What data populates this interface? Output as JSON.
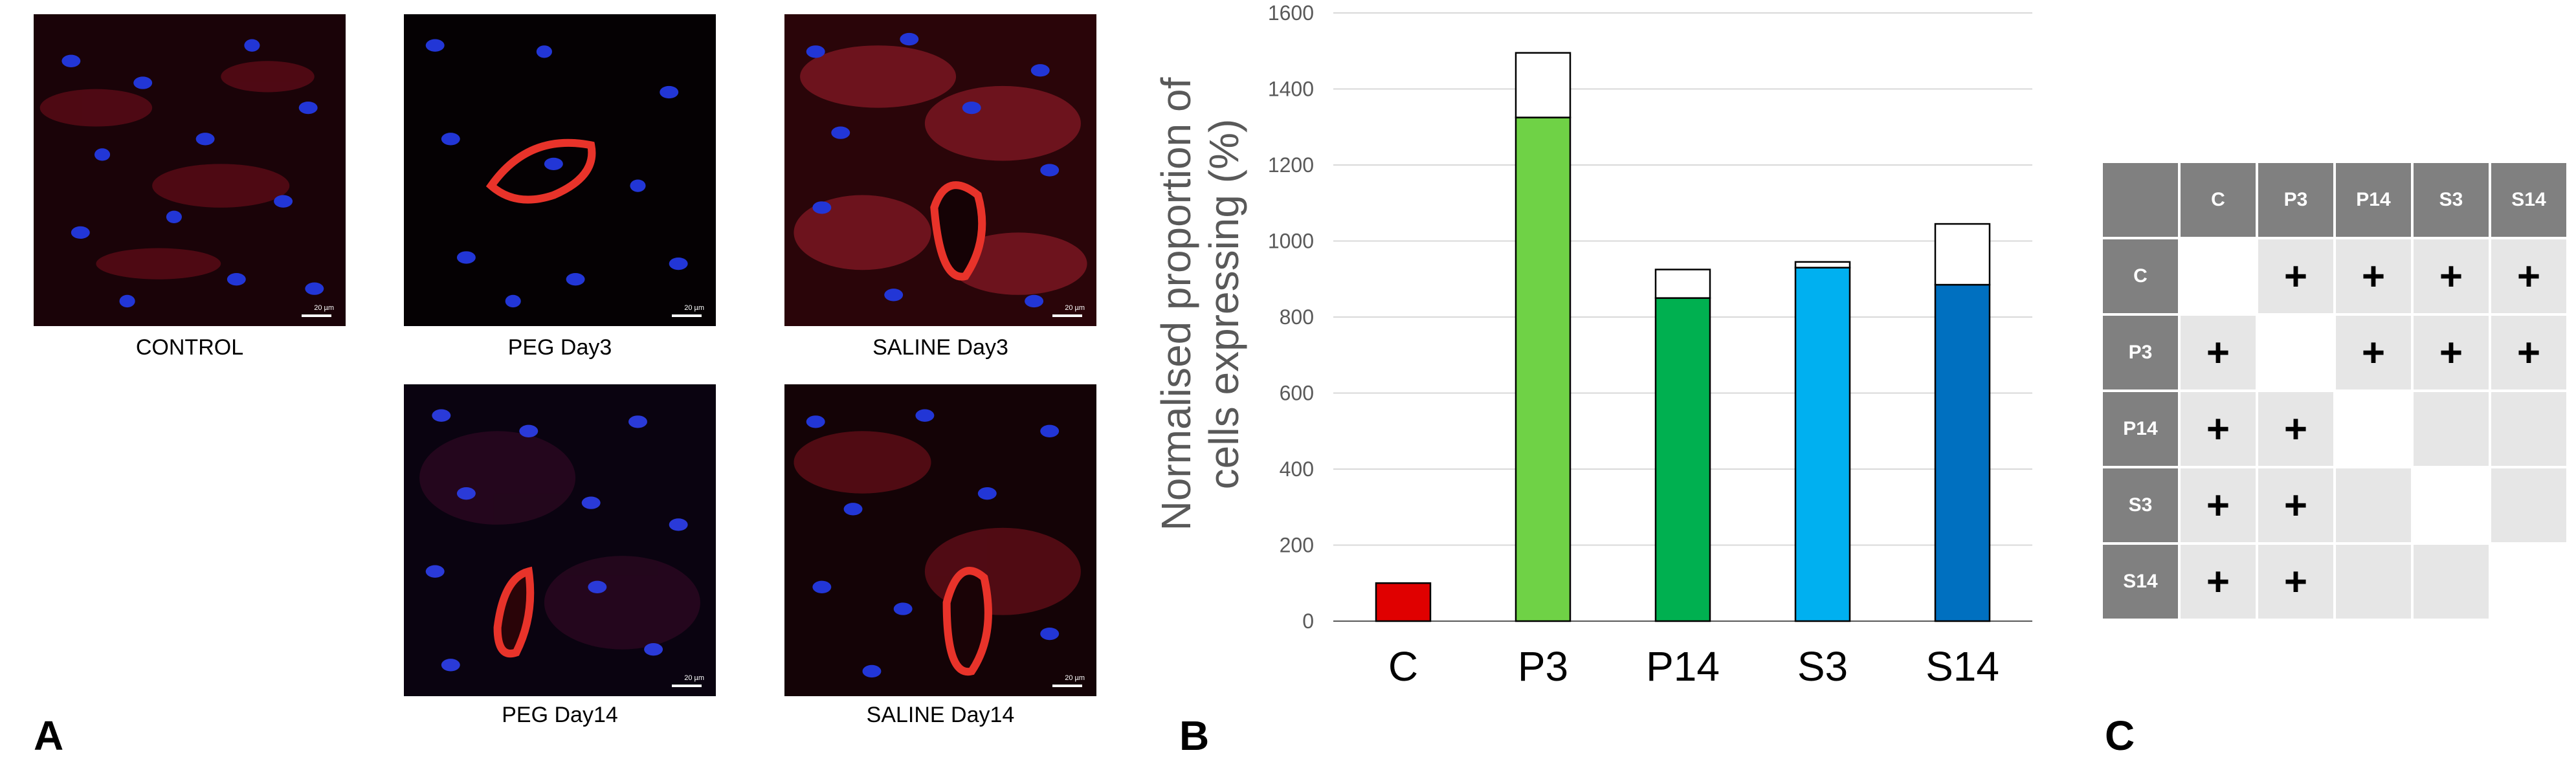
{
  "figure_panels": {
    "label_a": "A",
    "label_b": "B",
    "label_c": "C"
  },
  "micrographs": [
    {
      "caption": "CONTROL",
      "scale": "20 µm"
    },
    {
      "caption": "PEG Day3",
      "scale": "20 µm"
    },
    {
      "caption": "SALINE Day3",
      "scale": "20 µm"
    },
    {
      "caption": "PEG Day14",
      "scale": "20 µm"
    },
    {
      "caption": "SALINE Day14",
      "scale": "20 µm"
    }
  ],
  "chart_data": {
    "type": "bar",
    "stacked": true,
    "categories": [
      "C",
      "P3",
      "P14",
      "S3",
      "S14"
    ],
    "series": [
      {
        "values": [
          100,
          1325,
          850,
          930,
          885
        ],
        "colors": [
          "#e00000",
          "#6fd246",
          "#00b050",
          "#00b0f0",
          "#0070c0"
        ]
      },
      {
        "values": [
          0,
          170,
          75,
          15,
          160
        ],
        "colors": [
          "#ffffff",
          "#ffffff",
          "#ffffff",
          "#ffffff",
          "#ffffff"
        ]
      }
    ],
    "ylabel_line1": "Normalised proportion of",
    "ylabel_line2": "cells expressing (%)",
    "ylim": [
      0,
      1600
    ],
    "yticks": [
      0,
      200,
      400,
      600,
      800,
      1000,
      1200,
      1400,
      1600
    ],
    "grid": true,
    "gridColor": "#d9d9d9",
    "axisColor": "#595959"
  },
  "significance_table": {
    "headers": [
      "C",
      "P3",
      "P14",
      "S3",
      "S14"
    ],
    "rows": [
      {
        "label": "C",
        "cells": [
          "",
          "+",
          "+",
          "+",
          "+"
        ]
      },
      {
        "label": "P3",
        "cells": [
          "+",
          "",
          "+",
          "+",
          "+"
        ]
      },
      {
        "label": "P14",
        "cells": [
          "+",
          "+",
          "",
          "",
          ""
        ]
      },
      {
        "label": "S3",
        "cells": [
          "+",
          "+",
          "",
          "",
          ""
        ]
      },
      {
        "label": "S14",
        "cells": [
          "+",
          "+",
          "",
          "",
          ""
        ]
      }
    ],
    "header_color": "#808080",
    "cell_color": "#e6e6e6"
  }
}
